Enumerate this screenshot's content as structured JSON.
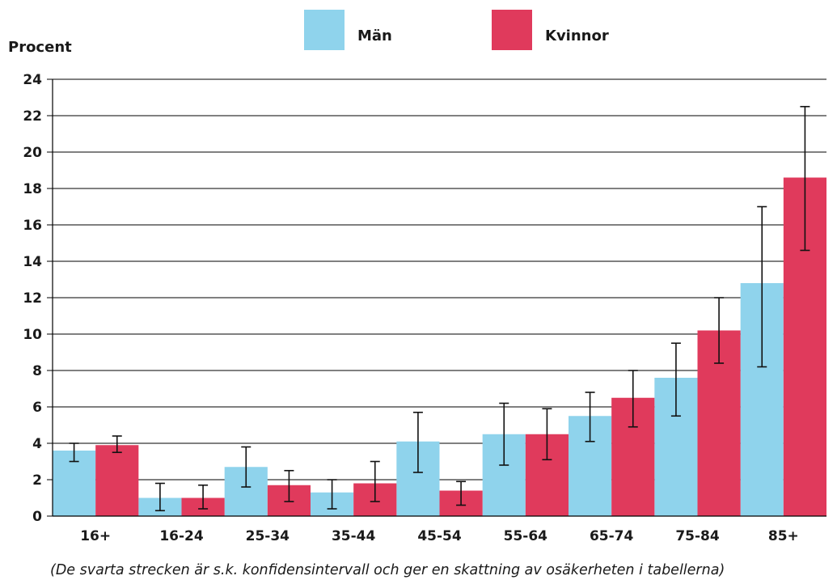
{
  "chart_data": {
    "type": "bar",
    "ylabel": "Procent",
    "ylim": [
      0,
      24
    ],
    "yticks": [
      0,
      2,
      4,
      6,
      8,
      10,
      12,
      14,
      16,
      18,
      20,
      22,
      24
    ],
    "grid": true,
    "legend_position": "top-center",
    "categories": [
      "16+",
      "16-24",
      "25-34",
      "35-44",
      "45-54",
      "55-64",
      "65-74",
      "75-84",
      "85+"
    ],
    "series": [
      {
        "name": "Män",
        "color": "#8fd3ec",
        "values": [
          3.6,
          1.0,
          2.7,
          1.3,
          4.1,
          4.5,
          5.5,
          7.6,
          12.8
        ],
        "ci_low": [
          3.0,
          0.3,
          1.6,
          0.4,
          2.4,
          2.8,
          4.1,
          5.5,
          8.2
        ],
        "ci_high": [
          4.0,
          1.8,
          3.8,
          2.0,
          5.7,
          6.2,
          6.8,
          9.5,
          17.0
        ]
      },
      {
        "name": "Kvinnor",
        "color": "#e03a5c",
        "values": [
          3.9,
          1.0,
          1.7,
          1.8,
          1.4,
          4.5,
          6.5,
          10.2,
          18.6
        ],
        "ci_low": [
          3.5,
          0.4,
          0.8,
          0.8,
          0.6,
          3.1,
          4.9,
          8.4,
          14.6
        ],
        "ci_high": [
          4.4,
          1.7,
          2.5,
          3.0,
          1.9,
          5.9,
          8.0,
          12.0,
          22.5
        ]
      }
    ],
    "note": "(De svarta strecken är s.k. konfidensintervall och ger en skattning av osäkerheten i tabellerna)"
  }
}
